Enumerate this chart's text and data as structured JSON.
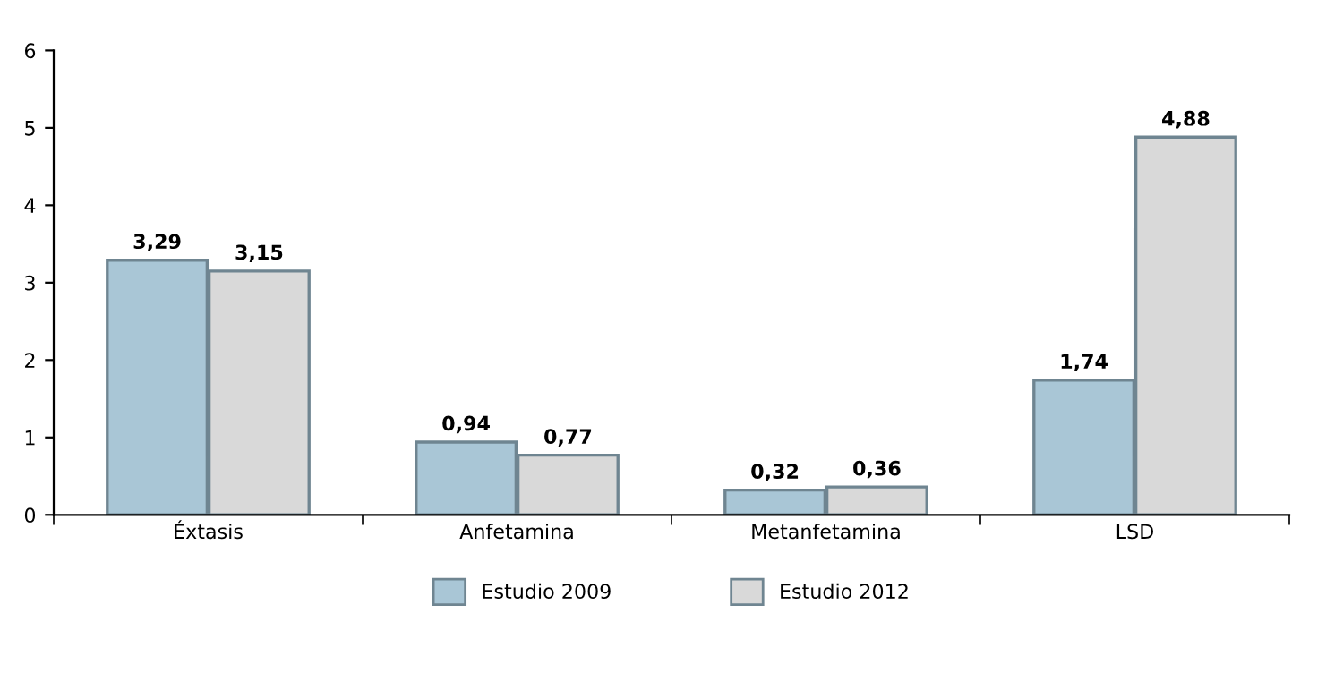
{
  "chart_data": {
    "type": "bar",
    "categories": [
      "Éxtasis",
      "Anfetamina",
      "Metanfetamina",
      "LSD"
    ],
    "series": [
      {
        "name": "Estudio 2009",
        "color": "#a9c6d6",
        "values": [
          3.29,
          0.94,
          0.32,
          1.74
        ],
        "value_labels": [
          "3,29",
          "0,94",
          "0,32",
          "1,74"
        ]
      },
      {
        "name": "Estudio 2012",
        "color": "#d9d9d9",
        "values": [
          3.15,
          0.77,
          0.36,
          4.88
        ],
        "value_labels": [
          "3,15",
          "0,77",
          "0,36",
          "4,88"
        ]
      }
    ],
    "ylim": [
      0,
      6
    ],
    "yticks": [
      0,
      1,
      2,
      3,
      4,
      5,
      6
    ],
    "grid": false,
    "legend": "bottom"
  }
}
